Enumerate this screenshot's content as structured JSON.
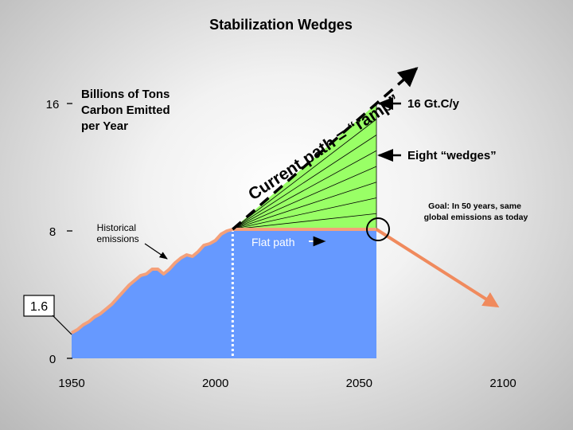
{
  "chart_data": {
    "type": "area",
    "title": "Stabilization Wedges",
    "ylabel_lines": [
      "Billions of Tons",
      "Carbon Emitted",
      "per Year"
    ],
    "x_ticks": [
      "1950",
      "2000",
      "2050",
      "2100"
    ],
    "y_ticks": [
      "0",
      "8",
      "16"
    ],
    "y_callout": "1.6",
    "xlim": [
      1950,
      2100
    ],
    "ylim": [
      0,
      16
    ],
    "historical": {
      "name": "Historical emissions",
      "x": [
        1950,
        1952,
        1954,
        1956,
        1958,
        1960,
        1962,
        1964,
        1966,
        1968,
        1970,
        1972,
        1974,
        1976,
        1978,
        1980,
        1982,
        1984,
        1986,
        1988,
        1990,
        1992,
        1994,
        1996,
        1998,
        2000,
        2002,
        2004,
        2006
      ],
      "y": [
        1.6,
        1.8,
        2.1,
        2.3,
        2.6,
        2.8,
        3.1,
        3.4,
        3.8,
        4.2,
        4.6,
        4.9,
        5.2,
        5.3,
        5.6,
        5.6,
        5.3,
        5.6,
        6.0,
        6.3,
        6.5,
        6.4,
        6.7,
        7.1,
        7.2,
        7.4,
        7.8,
        8.0,
        8.1
      ]
    },
    "flat_path": {
      "name": "Flat path",
      "x": [
        2006,
        2056
      ],
      "y": [
        8.1,
        8.1
      ]
    },
    "ramp": {
      "name": "Current path = “ramp”",
      "x": [
        2006,
        2056
      ],
      "y": [
        8.1,
        16
      ]
    },
    "decline": {
      "x": [
        2056,
        2100
      ],
      "y": [
        8.1,
        3.3
      ]
    },
    "wedges": {
      "count": 8,
      "from_year": 2006,
      "to_year": 2056,
      "lower": 8.1,
      "upper": 16
    },
    "today_year": 2006
  },
  "labels": {
    "ramp_text": "Current path = “ramp”",
    "historical": [
      "Historical",
      "emissions"
    ],
    "flat_path": "Flat path",
    "gtc": "16 Gt.C/y",
    "wedges": "Eight “wedges”",
    "goal": [
      "Goal: In 50 years, same",
      "global emissions as today"
    ]
  },
  "colors": {
    "flat_area": "#6699ff",
    "wedge_area": "#99ff66",
    "emission_line": "#f4a07a",
    "decline_line": "#f08a5d",
    "ramp_line": "#000000"
  }
}
